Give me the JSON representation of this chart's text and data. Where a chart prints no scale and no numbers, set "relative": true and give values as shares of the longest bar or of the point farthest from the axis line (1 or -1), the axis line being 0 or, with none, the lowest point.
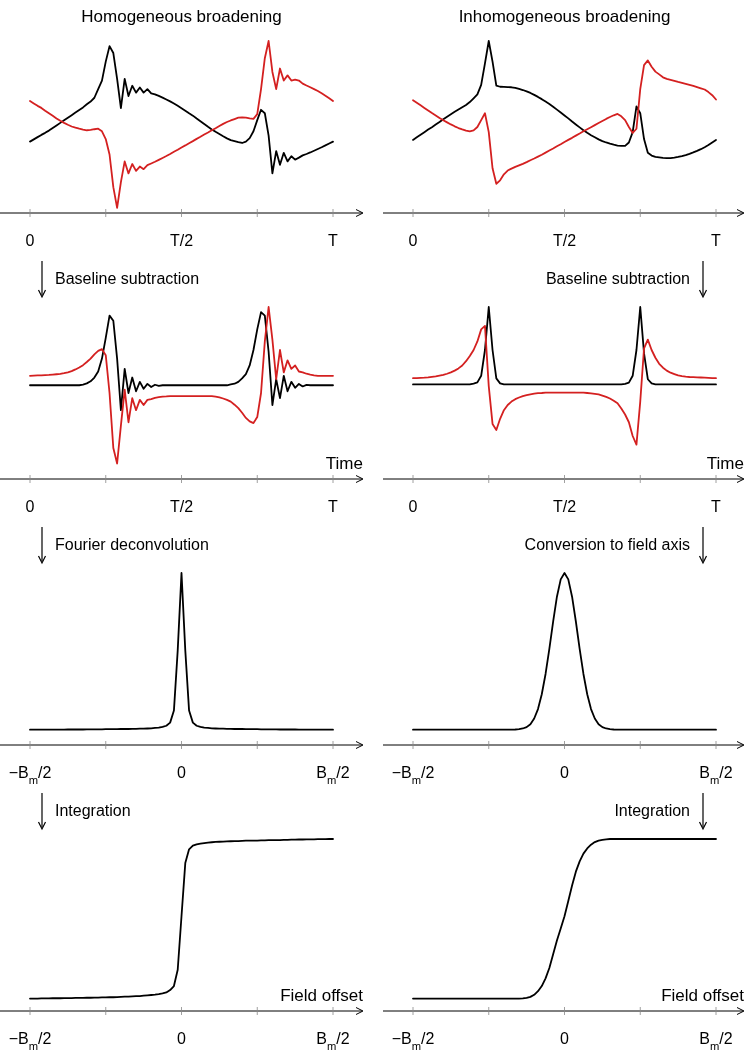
{
  "chart_data": [
    {
      "type": "line",
      "title": "Homogeneous broadening",
      "relative": true,
      "categories": [
        "0",
        null,
        null,
        null,
        null,
        null,
        null,
        null,
        null,
        null,
        null,
        null,
        null,
        null,
        null,
        null,
        null,
        null,
        null,
        null,
        null,
        null,
        null,
        null,
        null,
        null,
        null,
        null,
        null,
        null,
        null,
        null,
        null,
        null,
        null,
        null,
        null,
        null,
        null,
        null,
        "T/2",
        null,
        null,
        null,
        null,
        null,
        null,
        null,
        null,
        null,
        null,
        null,
        null,
        null,
        null,
        null,
        null,
        null,
        null,
        null,
        null,
        null,
        null,
        null,
        null,
        null,
        null,
        null,
        null,
        null,
        null,
        null,
        null,
        null,
        null,
        null,
        null,
        null,
        null,
        null,
        "T"
      ],
      "series": [
        {
          "color": "#000000",
          "values": [
            0.415,
            0.428,
            0.441,
            0.454,
            0.466,
            0.479,
            0.494,
            0.509,
            0.524,
            0.539,
            0.554,
            0.569,
            0.584,
            0.599,
            0.614,
            0.632,
            0.648,
            0.67,
            0.72,
            0.77,
            0.88,
            0.97,
            0.93,
            0.78,
            0.61,
            0.78,
            0.68,
            0.74,
            0.7,
            0.73,
            0.7,
            0.72,
            0.695,
            0.69,
            0.681,
            0.671,
            0.66,
            0.649,
            0.637,
            0.623,
            0.609,
            0.595,
            0.58,
            0.566,
            0.549,
            0.533,
            0.517,
            0.501,
            0.486,
            0.472,
            0.459,
            0.446,
            0.434,
            0.424,
            0.418,
            0.412,
            0.407,
            0.415,
            0.435,
            0.475,
            0.54,
            0.6,
            0.58,
            0.45,
            0.23,
            0.36,
            0.28,
            0.35,
            0.3,
            0.33,
            0.31,
            0.322,
            0.335,
            0.343,
            0.352,
            0.362,
            0.372,
            0.382,
            0.393,
            0.404,
            0.415
          ]
        },
        {
          "color": "#d42020",
          "values": [
            0.651,
            0.637,
            0.623,
            0.611,
            0.595,
            0.58,
            0.565,
            0.55,
            0.536,
            0.524,
            0.513,
            0.503,
            0.496,
            0.49,
            0.485,
            0.481,
            0.483,
            0.487,
            0.49,
            0.475,
            0.43,
            0.34,
            0.15,
            0.03,
            0.18,
            0.3,
            0.23,
            0.285,
            0.245,
            0.27,
            0.255,
            0.278,
            0.288,
            0.298,
            0.309,
            0.32,
            0.331,
            0.343,
            0.356,
            0.368,
            0.381,
            0.393,
            0.406,
            0.418,
            0.431,
            0.443,
            0.456,
            0.468,
            0.481,
            0.493,
            0.506,
            0.518,
            0.529,
            0.538,
            0.546,
            0.554,
            0.556,
            0.554,
            0.55,
            0.547,
            0.575,
            0.72,
            0.9,
            1.0,
            0.82,
            0.72,
            0.84,
            0.77,
            0.8,
            0.77,
            0.775,
            0.77,
            0.752,
            0.741,
            0.731,
            0.72,
            0.709,
            0.696,
            0.682,
            0.667,
            0.651
          ]
        }
      ]
    },
    {
      "type": "line",
      "title": "Inhomogeneous broadening",
      "relative": true,
      "categories": [
        "0",
        null,
        null,
        null,
        null,
        null,
        null,
        null,
        null,
        null,
        null,
        null,
        null,
        null,
        null,
        null,
        null,
        null,
        null,
        null,
        null,
        null,
        null,
        null,
        null,
        null,
        null,
        null,
        null,
        null,
        null,
        null,
        null,
        null,
        null,
        null,
        null,
        null,
        null,
        null,
        "T/2",
        null,
        null,
        null,
        null,
        null,
        null,
        null,
        null,
        null,
        null,
        null,
        null,
        null,
        null,
        null,
        null,
        null,
        null,
        null,
        null,
        null,
        null,
        null,
        null,
        null,
        null,
        null,
        null,
        null,
        null,
        null,
        null,
        null,
        null,
        null,
        null,
        null,
        null,
        null,
        "T"
      ],
      "series": [
        {
          "color": "#000000",
          "values": [
            0.425,
            0.44,
            0.455,
            0.47,
            0.485,
            0.499,
            0.514,
            0.529,
            0.545,
            0.56,
            0.574,
            0.588,
            0.602,
            0.615,
            0.628,
            0.645,
            0.667,
            0.69,
            0.745,
            0.87,
            1.0,
            0.88,
            0.74,
            0.734,
            0.733,
            0.732,
            0.731,
            0.728,
            0.722,
            0.715,
            0.707,
            0.698,
            0.687,
            0.675,
            0.662,
            0.648,
            0.634,
            0.618,
            0.601,
            0.584,
            0.567,
            0.55,
            0.532,
            0.515,
            0.498,
            0.481,
            0.466,
            0.452,
            0.44,
            0.428,
            0.418,
            0.41,
            0.403,
            0.397,
            0.392,
            0.39,
            0.39,
            0.41,
            0.47,
            0.62,
            0.58,
            0.43,
            0.35,
            0.334,
            0.326,
            0.323,
            0.32,
            0.319,
            0.319,
            0.322,
            0.326,
            0.331,
            0.337,
            0.344,
            0.352,
            0.361,
            0.371,
            0.382,
            0.395,
            0.41,
            0.425
          ]
        },
        {
          "color": "#d42020",
          "values": [
            0.656,
            0.641,
            0.626,
            0.611,
            0.596,
            0.581,
            0.567,
            0.552,
            0.539,
            0.527,
            0.515,
            0.504,
            0.494,
            0.486,
            0.479,
            0.474,
            0.48,
            0.5,
            0.54,
            0.58,
            0.47,
            0.26,
            0.17,
            0.19,
            0.225,
            0.247,
            0.258,
            0.268,
            0.277,
            0.286,
            0.296,
            0.307,
            0.317,
            0.328,
            0.339,
            0.351,
            0.363,
            0.375,
            0.388,
            0.4,
            0.413,
            0.425,
            0.437,
            0.45,
            0.462,
            0.475,
            0.487,
            0.499,
            0.511,
            0.523,
            0.535,
            0.547,
            0.558,
            0.568,
            0.576,
            0.562,
            0.54,
            0.5,
            0.465,
            0.49,
            0.72,
            0.86,
            0.887,
            0.85,
            0.822,
            0.806,
            0.789,
            0.78,
            0.774,
            0.768,
            0.762,
            0.757,
            0.751,
            0.745,
            0.739,
            0.732,
            0.725,
            0.718,
            0.703,
            0.685,
            0.66
          ]
        }
      ]
    },
    {
      "type": "line",
      "annotations": [
        "Baseline subtraction"
      ],
      "xlabel": "Time",
      "relative": true,
      "categories": [
        "0",
        null,
        null,
        null,
        null,
        null,
        null,
        null,
        null,
        null,
        null,
        null,
        null,
        null,
        null,
        null,
        null,
        null,
        null,
        null,
        null,
        null,
        null,
        null,
        null,
        null,
        null,
        null,
        null,
        null,
        null,
        null,
        null,
        null,
        null,
        null,
        null,
        null,
        null,
        null,
        "T/2",
        null,
        null,
        null,
        null,
        null,
        null,
        null,
        null,
        null,
        null,
        null,
        null,
        null,
        null,
        null,
        null,
        null,
        null,
        null,
        null,
        null,
        null,
        null,
        null,
        null,
        null,
        null,
        null,
        null,
        null,
        null,
        null,
        null,
        null,
        null,
        null,
        null,
        null,
        null,
        "T"
      ],
      "series": [
        {
          "color": "#000000",
          "values": [
            0.545,
            0.545,
            0.545,
            0.545,
            0.545,
            0.545,
            0.545,
            0.545,
            0.545,
            0.545,
            0.545,
            0.545,
            0.545,
            0.545,
            0.549,
            0.556,
            0.568,
            0.59,
            0.625,
            0.7,
            0.82,
            0.95,
            0.92,
            0.7,
            0.4,
            0.64,
            0.5,
            0.59,
            0.51,
            0.565,
            0.525,
            0.553,
            0.535,
            0.548,
            0.542,
            0.545,
            0.545,
            0.545,
            0.545,
            0.545,
            0.545,
            0.545,
            0.545,
            0.545,
            0.545,
            0.545,
            0.545,
            0.545,
            0.545,
            0.545,
            0.545,
            0.545,
            0.545,
            0.55,
            0.554,
            0.565,
            0.585,
            0.61,
            0.66,
            0.75,
            0.87,
            0.97,
            0.95,
            0.74,
            0.43,
            0.58,
            0.47,
            0.6,
            0.51,
            0.565,
            0.53,
            0.553,
            0.538,
            0.547,
            0.545,
            0.545,
            0.545,
            0.545,
            0.545,
            0.545,
            0.545
          ]
        },
        {
          "color": "#d42020",
          "values": [
            0.6,
            0.601,
            0.602,
            0.603,
            0.604,
            0.605,
            0.607,
            0.609,
            0.611,
            0.615,
            0.62,
            0.627,
            0.637,
            0.648,
            0.662,
            0.68,
            0.7,
            0.725,
            0.745,
            0.755,
            0.72,
            0.5,
            0.18,
            0.09,
            0.31,
            0.52,
            0.33,
            0.47,
            0.4,
            0.46,
            0.43,
            0.46,
            0.465,
            0.472,
            0.476,
            0.479,
            0.48,
            0.482,
            0.482,
            0.482,
            0.482,
            0.482,
            0.482,
            0.482,
            0.482,
            0.482,
            0.482,
            0.482,
            0.482,
            0.479,
            0.475,
            0.468,
            0.46,
            0.45,
            0.432,
            0.412,
            0.385,
            0.355,
            0.335,
            0.325,
            0.36,
            0.5,
            0.8,
            1.0,
            0.81,
            0.58,
            0.75,
            0.62,
            0.69,
            0.64,
            0.66,
            0.625,
            0.62,
            0.612,
            0.607,
            0.603,
            0.6,
            0.6,
            0.6,
            0.6,
            0.6
          ]
        }
      ]
    },
    {
      "type": "line",
      "annotations": [
        "Baseline subtraction"
      ],
      "xlabel": "Time",
      "relative": true,
      "categories": [
        "0",
        null,
        null,
        null,
        null,
        null,
        null,
        null,
        null,
        null,
        null,
        null,
        null,
        null,
        null,
        null,
        null,
        null,
        null,
        null,
        null,
        null,
        null,
        null,
        null,
        null,
        null,
        null,
        null,
        null,
        null,
        null,
        null,
        null,
        null,
        null,
        null,
        null,
        null,
        null,
        "T/2",
        null,
        null,
        null,
        null,
        null,
        null,
        null,
        null,
        null,
        null,
        null,
        null,
        null,
        null,
        null,
        null,
        null,
        null,
        null,
        null,
        null,
        null,
        null,
        null,
        null,
        null,
        null,
        null,
        null,
        null,
        null,
        null,
        null,
        null,
        null,
        null,
        null,
        null,
        null,
        "T"
      ],
      "series": [
        {
          "color": "#000000",
          "values": [
            0.55,
            0.55,
            0.55,
            0.55,
            0.55,
            0.55,
            0.55,
            0.55,
            0.55,
            0.55,
            0.55,
            0.55,
            0.55,
            0.55,
            0.55,
            0.55,
            0.555,
            0.562,
            0.6,
            0.75,
            1.0,
            0.75,
            0.585,
            0.556,
            0.55,
            0.55,
            0.55,
            0.55,
            0.55,
            0.55,
            0.55,
            0.55,
            0.55,
            0.55,
            0.55,
            0.55,
            0.55,
            0.55,
            0.55,
            0.55,
            0.55,
            0.55,
            0.55,
            0.55,
            0.55,
            0.55,
            0.55,
            0.55,
            0.55,
            0.55,
            0.55,
            0.55,
            0.55,
            0.55,
            0.55,
            0.55,
            0.553,
            0.56,
            0.6,
            0.75,
            1.0,
            0.73,
            0.58,
            0.556,
            0.55,
            0.55,
            0.55,
            0.55,
            0.55,
            0.55,
            0.55,
            0.55,
            0.55,
            0.55,
            0.55,
            0.55,
            0.55,
            0.55,
            0.55,
            0.55,
            0.55
          ]
        },
        {
          "color": "#d42020",
          "values": [
            0.586,
            0.587,
            0.588,
            0.589,
            0.591,
            0.594,
            0.597,
            0.601,
            0.605,
            0.612,
            0.62,
            0.63,
            0.643,
            0.66,
            0.685,
            0.715,
            0.75,
            0.8,
            0.87,
            0.89,
            0.54,
            0.32,
            0.285,
            0.35,
            0.4,
            0.43,
            0.45,
            0.464,
            0.474,
            0.482,
            0.488,
            0.492,
            0.496,
            0.499,
            0.5,
            0.502,
            0.502,
            0.502,
            0.502,
            0.502,
            0.502,
            0.502,
            0.502,
            0.502,
            0.502,
            0.502,
            0.5,
            0.498,
            0.495,
            0.492,
            0.485,
            0.477,
            0.468,
            0.455,
            0.44,
            0.41,
            0.375,
            0.33,
            0.25,
            0.2,
            0.45,
            0.76,
            0.81,
            0.75,
            0.705,
            0.67,
            0.647,
            0.63,
            0.618,
            0.61,
            0.602,
            0.598,
            0.595,
            0.593,
            0.592,
            0.591,
            0.59,
            0.589,
            0.588,
            0.587,
            0.586
          ]
        }
      ]
    },
    {
      "type": "line",
      "annotations": [
        "Fourier deconvolution"
      ],
      "relative": true,
      "categories": [
        "−B$_{m}$/2",
        null,
        null,
        null,
        null,
        null,
        null,
        null,
        null,
        null,
        null,
        null,
        null,
        null,
        null,
        null,
        null,
        null,
        null,
        null,
        null,
        null,
        null,
        null,
        null,
        null,
        null,
        null,
        null,
        null,
        null,
        null,
        null,
        null,
        null,
        null,
        null,
        null,
        null,
        null,
        "0",
        null,
        null,
        null,
        null,
        null,
        null,
        null,
        null,
        null,
        null,
        null,
        null,
        null,
        null,
        null,
        null,
        null,
        null,
        null,
        null,
        null,
        null,
        null,
        null,
        null,
        null,
        null,
        null,
        null,
        null,
        null,
        null,
        null,
        null,
        null,
        null,
        null,
        null,
        null,
        "B$_{m}$/2"
      ],
      "series": [
        {
          "color": "#000000",
          "values": [
            0.089,
            0.089,
            0.089,
            0.089,
            0.089,
            0.089,
            0.089,
            0.089,
            0.089,
            0.089,
            0.09,
            0.09,
            0.09,
            0.09,
            0.09,
            0.091,
            0.091,
            0.091,
            0.091,
            0.091,
            0.092,
            0.092,
            0.092,
            0.092,
            0.093,
            0.093,
            0.093,
            0.094,
            0.094,
            0.095,
            0.095,
            0.096,
            0.097,
            0.099,
            0.101,
            0.105,
            0.112,
            0.13,
            0.2,
            0.55,
            1.0,
            0.55,
            0.2,
            0.13,
            0.112,
            0.105,
            0.101,
            0.099,
            0.097,
            0.096,
            0.095,
            0.095,
            0.094,
            0.094,
            0.093,
            0.093,
            0.093,
            0.092,
            0.092,
            0.092,
            0.092,
            0.091,
            0.091,
            0.091,
            0.091,
            0.091,
            0.09,
            0.09,
            0.09,
            0.09,
            0.09,
            0.089,
            0.089,
            0.089,
            0.089,
            0.089,
            0.089,
            0.089,
            0.089,
            0.089,
            0.089
          ]
        }
      ]
    },
    {
      "type": "line",
      "annotations": [
        "Conversion to field axis"
      ],
      "relative": true,
      "categories": [
        "−B$_{m}$/2",
        null,
        null,
        null,
        null,
        null,
        null,
        null,
        null,
        null,
        null,
        null,
        null,
        null,
        null,
        null,
        null,
        null,
        null,
        null,
        null,
        null,
        null,
        null,
        null,
        null,
        null,
        null,
        null,
        null,
        null,
        null,
        null,
        null,
        null,
        null,
        null,
        null,
        null,
        null,
        "0",
        null,
        null,
        null,
        null,
        null,
        null,
        null,
        null,
        null,
        null,
        null,
        null,
        null,
        null,
        null,
        null,
        null,
        null,
        null,
        null,
        null,
        null,
        null,
        null,
        null,
        null,
        null,
        null,
        null,
        null,
        null,
        null,
        null,
        null,
        null,
        null,
        null,
        null,
        null,
        "B$_{m}$/2"
      ],
      "series": [
        {
          "color": "#000000",
          "values": [
            0.089,
            0.089,
            0.089,
            0.089,
            0.089,
            0.089,
            0.089,
            0.089,
            0.089,
            0.089,
            0.089,
            0.089,
            0.089,
            0.089,
            0.089,
            0.089,
            0.089,
            0.089,
            0.089,
            0.089,
            0.089,
            0.089,
            0.089,
            0.089,
            0.089,
            0.089,
            0.089,
            0.09,
            0.092,
            0.096,
            0.104,
            0.121,
            0.154,
            0.209,
            0.295,
            0.413,
            0.559,
            0.718,
            0.862,
            0.963,
            1.0,
            0.963,
            0.862,
            0.718,
            0.559,
            0.413,
            0.295,
            0.209,
            0.154,
            0.121,
            0.104,
            0.096,
            0.092,
            0.09,
            0.089,
            0.089,
            0.089,
            0.089,
            0.089,
            0.089,
            0.089,
            0.089,
            0.089,
            0.089,
            0.089,
            0.089,
            0.089,
            0.089,
            0.089,
            0.089,
            0.089,
            0.089,
            0.089,
            0.089,
            0.089,
            0.089,
            0.089,
            0.089,
            0.089,
            0.089,
            0.089
          ]
        }
      ]
    },
    {
      "type": "line",
      "annotations": [
        "Integration"
      ],
      "xlabel": "Field offset",
      "relative": true,
      "categories": [
        "−B$_{m}$/2",
        null,
        null,
        null,
        null,
        null,
        null,
        null,
        null,
        null,
        null,
        null,
        null,
        null,
        null,
        null,
        null,
        null,
        null,
        null,
        null,
        null,
        null,
        null,
        null,
        null,
        null,
        null,
        null,
        null,
        null,
        null,
        null,
        null,
        null,
        null,
        null,
        null,
        null,
        null,
        "0",
        null,
        null,
        null,
        null,
        null,
        null,
        null,
        null,
        null,
        null,
        null,
        null,
        null,
        null,
        null,
        null,
        null,
        null,
        null,
        null,
        null,
        null,
        null,
        null,
        null,
        null,
        null,
        null,
        null,
        null,
        null,
        null,
        null,
        null,
        null,
        null,
        null,
        null,
        null,
        "B$_{m}$/2"
      ],
      "series": [
        {
          "color": "#000000",
          "values": [
            0.072,
            0.072,
            0.072,
            0.073,
            0.073,
            0.073,
            0.074,
            0.074,
            0.074,
            0.075,
            0.075,
            0.075,
            0.076,
            0.076,
            0.076,
            0.077,
            0.077,
            0.078,
            0.078,
            0.079,
            0.079,
            0.08,
            0.08,
            0.081,
            0.082,
            0.083,
            0.084,
            0.085,
            0.086,
            0.087,
            0.089,
            0.091,
            0.093,
            0.095,
            0.098,
            0.102,
            0.108,
            0.122,
            0.145,
            0.24,
            0.551,
            0.86,
            0.94,
            0.961,
            0.969,
            0.973,
            0.976,
            0.979,
            0.981,
            0.983,
            0.984,
            0.985,
            0.986,
            0.987,
            0.988,
            0.988,
            0.989,
            0.99,
            0.99,
            0.991,
            0.991,
            0.992,
            0.992,
            0.993,
            0.993,
            0.994,
            0.994,
            0.995,
            0.995,
            0.996,
            0.996,
            0.997,
            0.997,
            0.998,
            0.998,
            0.998,
            0.999,
            0.999,
            0.999,
            1.0,
            1.0
          ]
        }
      ]
    },
    {
      "type": "line",
      "annotations": [
        "Integration"
      ],
      "xlabel": "Field offset",
      "relative": true,
      "categories": [
        "−B$_{m}$/2",
        null,
        null,
        null,
        null,
        null,
        null,
        null,
        null,
        null,
        null,
        null,
        null,
        null,
        null,
        null,
        null,
        null,
        null,
        null,
        null,
        null,
        null,
        null,
        null,
        null,
        null,
        null,
        null,
        null,
        null,
        null,
        null,
        null,
        null,
        null,
        null,
        null,
        null,
        null,
        "0",
        null,
        null,
        null,
        null,
        null,
        null,
        null,
        null,
        null,
        null,
        null,
        null,
        null,
        null,
        null,
        null,
        null,
        null,
        null,
        null,
        null,
        null,
        null,
        null,
        null,
        null,
        null,
        null,
        null,
        null,
        null,
        null,
        null,
        null,
        null,
        null,
        null,
        null,
        null,
        "B$_{m}$/2"
      ],
      "series": [
        {
          "color": "#000000",
          "values": [
            0.072,
            0.072,
            0.072,
            0.072,
            0.072,
            0.072,
            0.072,
            0.072,
            0.072,
            0.072,
            0.072,
            0.072,
            0.072,
            0.072,
            0.072,
            0.072,
            0.072,
            0.072,
            0.072,
            0.072,
            0.072,
            0.072,
            0.072,
            0.072,
            0.072,
            0.072,
            0.072,
            0.072,
            0.072,
            0.073,
            0.076,
            0.082,
            0.094,
            0.115,
            0.145,
            0.19,
            0.25,
            0.33,
            0.41,
            0.48,
            0.551,
            0.64,
            0.73,
            0.81,
            0.87,
            0.915,
            0.945,
            0.967,
            0.982,
            0.991,
            0.995,
            0.998,
            1.0,
            1.0,
            1.0,
            1.0,
            1.0,
            1.0,
            1.0,
            1.0,
            1.0,
            1.0,
            1.0,
            1.0,
            1.0,
            1.0,
            1.0,
            1.0,
            1.0,
            1.0,
            1.0,
            1.0,
            1.0,
            1.0,
            1.0,
            1.0,
            1.0,
            1.0,
            1.0,
            1.0,
            1.0
          ]
        }
      ]
    }
  ]
}
